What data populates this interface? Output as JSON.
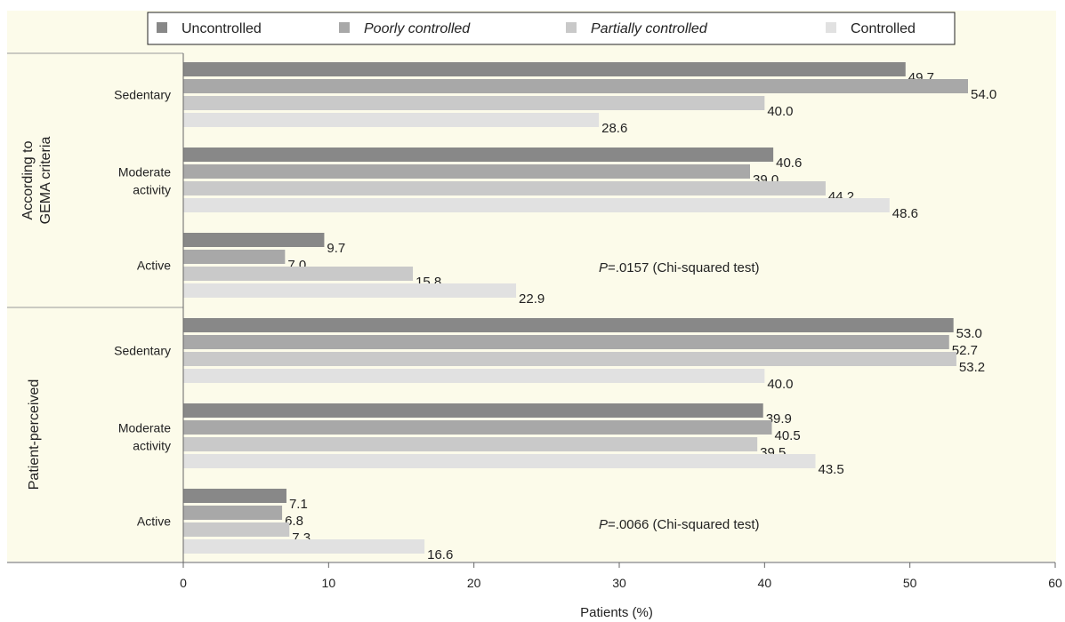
{
  "chart_data": {
    "type": "bar",
    "orientation": "horizontal",
    "xlabel": "Patients (%)",
    "xlim": [
      0,
      60
    ],
    "xticks": [
      0,
      10,
      20,
      30,
      40,
      50,
      60
    ],
    "grid": false,
    "legend_position": "top",
    "series": [
      {
        "name": "Uncontrolled",
        "italic": false,
        "color": "#888888"
      },
      {
        "name": "Poorly controlled",
        "italic": true,
        "color": "#a8a8a8"
      },
      {
        "name": "Partially controlled",
        "italic": true,
        "color": "#c9c9c9"
      },
      {
        "name": "Controlled",
        "italic": false,
        "color": "#e1e1e1"
      }
    ],
    "panels": [
      {
        "label": "According to\nGEMA criteria",
        "annotation_prefix": "P",
        "annotation_text": "=.0157 (Chi-squared test)",
        "groups": [
          {
            "label": "Sedentary",
            "values": [
              49.7,
              54.0,
              40.0,
              28.6
            ],
            "value_labels": [
              "49.7",
              "54.0",
              "40.0",
              "28.6"
            ]
          },
          {
            "label": "Moderate\nactivity",
            "values": [
              40.6,
              39.0,
              44.2,
              48.6
            ],
            "value_labels": [
              "40.6",
              "39.0",
              "44.2",
              "48.6"
            ]
          },
          {
            "label": "Active",
            "values": [
              9.7,
              7.0,
              15.8,
              22.9
            ],
            "value_labels": [
              "9.7",
              "7.0",
              "15.8",
              "22.9"
            ]
          }
        ]
      },
      {
        "label": "Patient-perceived",
        "annotation_prefix": "P",
        "annotation_text": "=.0066 (Chi-squared test)",
        "groups": [
          {
            "label": "Sedentary",
            "values": [
              53.0,
              52.7,
              53.2,
              40.0
            ],
            "value_labels": [
              "53.0",
              "52.7",
              "53.2",
              "40.0"
            ]
          },
          {
            "label": "Moderate\nactivity",
            "values": [
              39.9,
              40.5,
              39.5,
              43.5
            ],
            "value_labels": [
              "39.9",
              "40.5",
              "39.5",
              "43.5"
            ]
          },
          {
            "label": "Active",
            "values": [
              7.1,
              6.8,
              7.3,
              16.6
            ],
            "value_labels": [
              "7.1",
              "6.8",
              "7.3",
              "16.6"
            ]
          }
        ]
      }
    ]
  },
  "colors": {
    "plot_background": "#fcfbea"
  }
}
